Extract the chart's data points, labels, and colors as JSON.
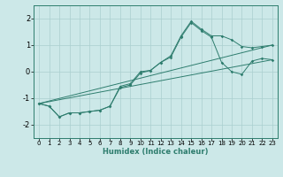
{
  "xlabel": "Humidex (Indice chaleur)",
  "ylabel": "",
  "background_color": "#cce8e8",
  "grid_color": "#aacfcf",
  "line_color": "#2e7d6e",
  "xlim": [
    -0.5,
    23.5
  ],
  "ylim": [
    -2.5,
    2.5
  ],
  "yticks": [
    -2,
    -1,
    0,
    1,
    2
  ],
  "xticks": [
    0,
    1,
    2,
    3,
    4,
    5,
    6,
    7,
    8,
    9,
    10,
    11,
    12,
    13,
    14,
    15,
    16,
    17,
    18,
    19,
    20,
    21,
    22,
    23
  ],
  "line1_x": [
    0,
    1,
    2,
    3,
    4,
    5,
    6,
    7,
    8,
    9,
    10,
    11,
    12,
    13,
    14,
    15,
    16,
    17,
    18,
    19,
    20,
    21,
    22,
    23
  ],
  "line1_y": [
    -1.2,
    -1.3,
    -1.7,
    -1.55,
    -1.55,
    -1.5,
    -1.45,
    -1.3,
    -0.6,
    -0.5,
    -0.05,
    0.05,
    0.35,
    0.6,
    1.35,
    1.9,
    1.6,
    1.35,
    1.35,
    1.2,
    0.95,
    0.9,
    0.95,
    1.0
  ],
  "line2_x": [
    0,
    1,
    2,
    3,
    4,
    5,
    6,
    7,
    8,
    9,
    10,
    11,
    12,
    13,
    14,
    15,
    16,
    17,
    18,
    19,
    20,
    21,
    22,
    23
  ],
  "line2_y": [
    -1.2,
    -1.3,
    -1.7,
    -1.55,
    -1.55,
    -1.5,
    -1.45,
    -1.3,
    -0.55,
    -0.45,
    0.0,
    0.05,
    0.35,
    0.55,
    1.3,
    1.85,
    1.55,
    1.3,
    0.35,
    0.0,
    -0.1,
    0.4,
    0.5,
    0.45
  ],
  "line3_x": [
    0,
    23
  ],
  "line3_y": [
    -1.2,
    0.45
  ],
  "line4_x": [
    0,
    23
  ],
  "line4_y": [
    -1.2,
    1.0
  ],
  "xlabel_fontsize": 6,
  "xlabel_color": "#2e7d6e",
  "tick_fontsize": 5,
  "ytick_fontsize": 6
}
